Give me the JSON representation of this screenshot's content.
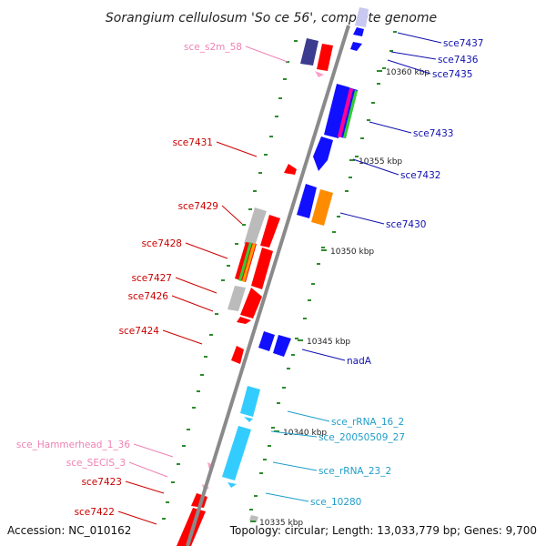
{
  "title": "Sorangium cellulosum 'So ce 56', complete genome",
  "accession": "Accession: NC_010162",
  "topology": "Topology: circular; Length: 13,033,779 bp; Genes: 9,700",
  "colors": {
    "backbone": "#8a8a8a",
    "tick": "#2e8b2e",
    "red_label": "#cc0000",
    "blue_label": "#1010b0",
    "pink_label": "#ee82b4",
    "cyan_label": "#1e9ec8",
    "gene_red": "#ff0000",
    "gene_blue": "#1010ff",
    "gene_gray": "#bbbbbb",
    "gene_orange": "#ff8c00",
    "gene_navy": "#3b3b8f",
    "gene_cyan": "#33ccff",
    "gene_pink": "#ff9ec8",
    "gene_lavender": "#c8c8f0"
  },
  "kbp_markers": [
    "10360 kbp",
    "10355 kbp",
    "10350 kbp",
    "10345 kbp",
    "10340 kbp",
    "10335 kbp"
  ],
  "labels_right": [
    {
      "text": "sce7437",
      "color": "blue"
    },
    {
      "text": "sce7436",
      "color": "blue"
    },
    {
      "text": "sce7435",
      "color": "blue"
    },
    {
      "text": "sce7433",
      "color": "blue"
    },
    {
      "text": "sce7432",
      "color": "blue"
    },
    {
      "text": "sce7430",
      "color": "blue"
    },
    {
      "text": "nadA",
      "color": "blue"
    },
    {
      "text": "sce_rRNA_16_2",
      "color": "cyan"
    },
    {
      "text": "sce_20050509_27",
      "color": "cyan"
    },
    {
      "text": "sce_rRNA_23_2",
      "color": "cyan"
    },
    {
      "text": "sce_10280",
      "color": "cyan"
    }
  ],
  "labels_left": [
    {
      "text": "sce_s2m_58",
      "color": "pink"
    },
    {
      "text": "sce7431",
      "color": "red"
    },
    {
      "text": "sce7429",
      "color": "red"
    },
    {
      "text": "sce7428",
      "color": "red"
    },
    {
      "text": "sce7427",
      "color": "red"
    },
    {
      "text": "sce7426",
      "color": "red"
    },
    {
      "text": "sce7424",
      "color": "red"
    },
    {
      "text": "sce_Hammerhead_1_36",
      "color": "pink"
    },
    {
      "text": "sce_SECIS_3",
      "color": "pink"
    },
    {
      "text": "sce7423",
      "color": "red"
    },
    {
      "text": "sce7422",
      "color": "red"
    }
  ]
}
